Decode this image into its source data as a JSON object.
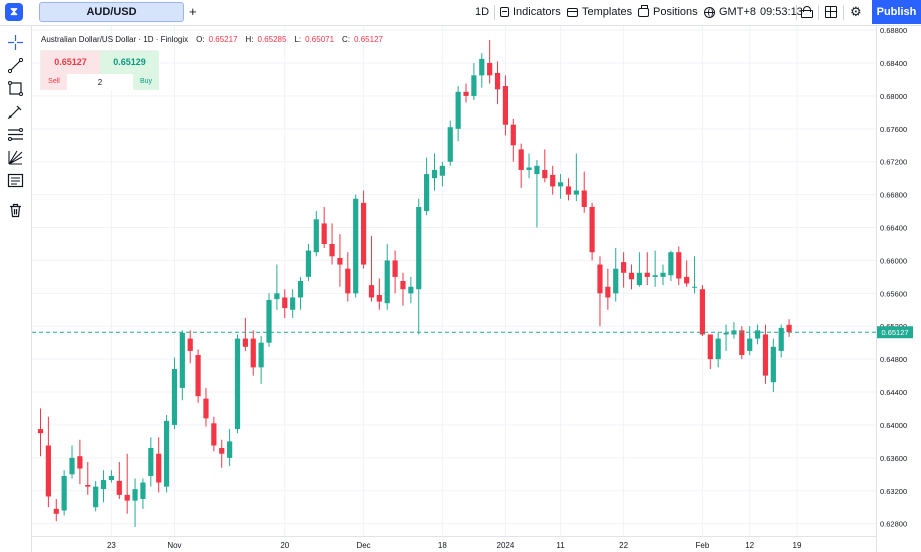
{
  "app": {
    "logo_glyph": "⧗"
  },
  "tabs": {
    "active": "AUD/USD",
    "add_glyph": "+"
  },
  "toolbar": {
    "interval": "1D",
    "indicators": "Indicators",
    "templates": "Templates",
    "positions": "Positions",
    "timezone": "GMT+8",
    "time": "09:53:13",
    "publish": "Publish"
  },
  "legend": {
    "title": "Australian Dollar/US Dollar · 1D · Finlogix",
    "open_label": "O:",
    "open": "0.65217",
    "high_label": "H:",
    "high": "0.65285",
    "low_label": "L:",
    "low": "0.65071",
    "close_label": "C:",
    "close": "0.65127"
  },
  "trade": {
    "sell_price": "0.65127",
    "buy_price": "0.65129",
    "sell": "Sell",
    "buy": "Buy",
    "quantity": "2"
  },
  "colors": {
    "up": "#22ab94",
    "down": "#f23645",
    "accent": "#2962ff",
    "last_price": "#22ab94"
  },
  "chart_data": {
    "type": "candlestick",
    "symbol": "AUD/USD",
    "interval": "1D",
    "last_price": 0.65127,
    "ylim": [
      0.6265,
      0.6885
    ],
    "y_ticks": [
      0.628,
      0.632,
      0.636,
      0.64,
      0.644,
      0.648,
      0.652,
      0.656,
      0.66,
      0.664,
      0.668,
      0.672,
      0.676,
      0.68,
      0.684,
      0.688
    ],
    "x_ticks": [
      {
        "i": 9,
        "label": "23"
      },
      {
        "i": 17,
        "label": "Nov"
      },
      {
        "i": 31,
        "label": "20"
      },
      {
        "i": 41,
        "label": "Dec"
      },
      {
        "i": 51,
        "label": "18"
      },
      {
        "i": 59,
        "label": "2024"
      },
      {
        "i": 66,
        "label": "11"
      },
      {
        "i": 74,
        "label": "22"
      },
      {
        "i": 84,
        "label": "Feb"
      },
      {
        "i": 90,
        "label": "12"
      },
      {
        "i": 96,
        "label": "19"
      }
    ],
    "candles": [
      [
        0.6395,
        0.642,
        0.6362,
        0.639
      ],
      [
        0.6375,
        0.641,
        0.63,
        0.6313
      ],
      [
        0.6298,
        0.631,
        0.6283,
        0.6292
      ],
      [
        0.6296,
        0.6345,
        0.629,
        0.6338
      ],
      [
        0.634,
        0.6375,
        0.6335,
        0.636
      ],
      [
        0.6362,
        0.6382,
        0.6328,
        0.6347
      ],
      [
        0.6327,
        0.6355,
        0.6315,
        0.6325
      ],
      [
        0.63,
        0.6332,
        0.6295,
        0.6325
      ],
      [
        0.6322,
        0.6345,
        0.6306,
        0.6333
      ],
      [
        0.6333,
        0.6345,
        0.633,
        0.6338
      ],
      [
        0.6332,
        0.6355,
        0.631,
        0.6315
      ],
      [
        0.6315,
        0.6365,
        0.6292,
        0.6308
      ],
      [
        0.6308,
        0.6335,
        0.6276,
        0.6322
      ],
      [
        0.631,
        0.6335,
        0.6298,
        0.633
      ],
      [
        0.6338,
        0.6385,
        0.6325,
        0.6372
      ],
      [
        0.6365,
        0.6385,
        0.6318,
        0.633
      ],
      [
        0.6325,
        0.6412,
        0.6318,
        0.6405
      ],
      [
        0.64,
        0.6482,
        0.6395,
        0.6468
      ],
      [
        0.6445,
        0.6515,
        0.643,
        0.6512
      ],
      [
        0.6505,
        0.6515,
        0.6475,
        0.649
      ],
      [
        0.6485,
        0.6492,
        0.6427,
        0.6435
      ],
      [
        0.6432,
        0.6445,
        0.6398,
        0.6408
      ],
      [
        0.6402,
        0.641,
        0.6368,
        0.6375
      ],
      [
        0.6372,
        0.6382,
        0.6348,
        0.6365
      ],
      [
        0.636,
        0.6395,
        0.635,
        0.638
      ],
      [
        0.6395,
        0.651,
        0.639,
        0.6505
      ],
      [
        0.6505,
        0.653,
        0.649,
        0.6495
      ],
      [
        0.6505,
        0.6515,
        0.646,
        0.647
      ],
      [
        0.647,
        0.6508,
        0.645,
        0.65
      ],
      [
        0.65,
        0.656,
        0.6495,
        0.6552
      ],
      [
        0.6553,
        0.6595,
        0.654,
        0.656
      ],
      [
        0.6555,
        0.6565,
        0.653,
        0.6542
      ],
      [
        0.654,
        0.6565,
        0.653,
        0.6555
      ],
      [
        0.6555,
        0.658,
        0.654,
        0.6575
      ],
      [
        0.658,
        0.662,
        0.6575,
        0.6612
      ],
      [
        0.661,
        0.666,
        0.6605,
        0.665
      ],
      [
        0.6645,
        0.6665,
        0.6615,
        0.662
      ],
      [
        0.662,
        0.6645,
        0.6595,
        0.6605
      ],
      [
        0.6603,
        0.6632,
        0.6568,
        0.6595
      ],
      [
        0.659,
        0.661,
        0.655,
        0.656
      ],
      [
        0.656,
        0.668,
        0.6555,
        0.6675
      ],
      [
        0.667,
        0.6685,
        0.659,
        0.6595
      ],
      [
        0.657,
        0.663,
        0.655,
        0.6555
      ],
      [
        0.6558,
        0.6578,
        0.654,
        0.655
      ],
      [
        0.6548,
        0.662,
        0.654,
        0.66
      ],
      [
        0.66,
        0.6612,
        0.656,
        0.658
      ],
      [
        0.6575,
        0.6585,
        0.6545,
        0.6565
      ],
      [
        0.656,
        0.658,
        0.6548,
        0.6568
      ],
      [
        0.6565,
        0.6675,
        0.651,
        0.6665
      ],
      [
        0.666,
        0.6725,
        0.6655,
        0.6705
      ],
      [
        0.67,
        0.673,
        0.6685,
        0.671
      ],
      [
        0.6703,
        0.672,
        0.669,
        0.6715
      ],
      [
        0.672,
        0.677,
        0.6715,
        0.6762
      ],
      [
        0.676,
        0.6812,
        0.6745,
        0.6805
      ],
      [
        0.6805,
        0.6815,
        0.6792,
        0.68
      ],
      [
        0.68,
        0.684,
        0.6795,
        0.6825
      ],
      [
        0.6825,
        0.6852,
        0.681,
        0.6845
      ],
      [
        0.684,
        0.6868,
        0.6815,
        0.6825
      ],
      [
        0.6828,
        0.6842,
        0.679,
        0.6808
      ],
      [
        0.6812,
        0.6825,
        0.6752,
        0.6765
      ],
      [
        0.6765,
        0.6772,
        0.672,
        0.674
      ],
      [
        0.6735,
        0.6742,
        0.6688,
        0.671
      ],
      [
        0.671,
        0.673,
        0.67,
        0.6713
      ],
      [
        0.6705,
        0.6722,
        0.664,
        0.6715
      ],
      [
        0.671,
        0.6735,
        0.6695,
        0.67
      ],
      [
        0.6704,
        0.6715,
        0.668,
        0.669
      ],
      [
        0.669,
        0.6705,
        0.6675,
        0.6695
      ],
      [
        0.669,
        0.67,
        0.6673,
        0.668
      ],
      [
        0.668,
        0.673,
        0.6672,
        0.6685
      ],
      [
        0.6685,
        0.6708,
        0.6658,
        0.6665
      ],
      [
        0.6665,
        0.667,
        0.66,
        0.661
      ],
      [
        0.6595,
        0.6605,
        0.652,
        0.656
      ],
      [
        0.6568,
        0.659,
        0.654,
        0.6555
      ],
      [
        0.656,
        0.6615,
        0.655,
        0.659
      ],
      [
        0.6598,
        0.661,
        0.6567,
        0.6585
      ],
      [
        0.6585,
        0.6595,
        0.6565,
        0.6577
      ],
      [
        0.657,
        0.661,
        0.6568,
        0.6585
      ],
      [
        0.6585,
        0.661,
        0.657,
        0.658
      ],
      [
        0.658,
        0.6612,
        0.6568,
        0.6582
      ],
      [
        0.658,
        0.6595,
        0.657,
        0.6585
      ],
      [
        0.6582,
        0.6612,
        0.6575,
        0.661
      ],
      [
        0.661,
        0.6617,
        0.657,
        0.6578
      ],
      [
        0.658,
        0.66,
        0.6568,
        0.6572
      ],
      [
        0.6568,
        0.6605,
        0.656,
        0.6568
      ],
      [
        0.6565,
        0.657,
        0.6508,
        0.651
      ],
      [
        0.651,
        0.651,
        0.6468,
        0.648
      ],
      [
        0.648,
        0.6512,
        0.647,
        0.6505
      ],
      [
        0.651,
        0.6522,
        0.649,
        0.6512
      ],
      [
        0.651,
        0.6525,
        0.6505,
        0.6515
      ],
      [
        0.6515,
        0.652,
        0.648,
        0.6485
      ],
      [
        0.649,
        0.652,
        0.6485,
        0.6505
      ],
      [
        0.6505,
        0.6522,
        0.6498,
        0.6515
      ],
      [
        0.651,
        0.6522,
        0.645,
        0.646
      ],
      [
        0.6452,
        0.6505,
        0.644,
        0.6495
      ],
      [
        0.649,
        0.6522,
        0.6482,
        0.6518
      ],
      [
        0.65217,
        0.65285,
        0.65071,
        0.65127
      ]
    ]
  }
}
